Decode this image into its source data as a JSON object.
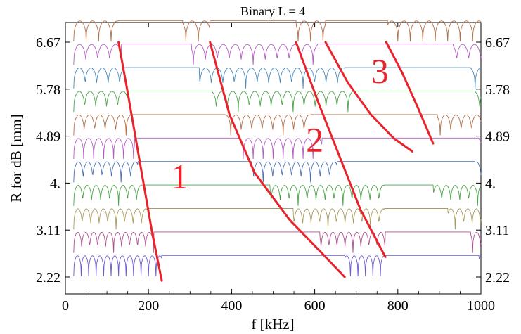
{
  "chart_data": {
    "type": "line",
    "title": "Binary L = 4",
    "xlabel": "f [kHz]",
    "ylabel": "R for dB [mm]",
    "xlim": [
      0,
      1000
    ],
    "ylim": [
      2.22,
      6.67
    ],
    "x_ticks": [
      "0",
      "200",
      "400",
      "600",
      "800",
      "1000"
    ],
    "x_tick_values": [
      0,
      200,
      400,
      600,
      800,
      1000
    ],
    "y_ticks": [
      "2.22",
      "3.11",
      "4.",
      "4.89",
      "5.78",
      "6.67"
    ],
    "y_tick_values": [
      2.22,
      3.11,
      4.0,
      4.89,
      5.78,
      6.67
    ],
    "grid": false,
    "row_colors": [
      "#6a5acd",
      "#b04f8d",
      "#a89b5c",
      "#4aa44a",
      "#4a6fb3",
      "#b25cc2",
      "#b0704a",
      "#4aa44a",
      "#4a8ab8",
      "#b25cc2",
      "#b0704a"
    ],
    "stopbands": [
      {
        "R": 2.22,
        "gaps": [
          [
            232,
            672
          ],
          [
            768,
            995
          ]
        ]
      },
      {
        "R": 2.665,
        "gaps": [
          [
            213,
            612
          ],
          [
            770,
            975
          ]
        ]
      },
      {
        "R": 3.11,
        "gaps": [
          [
            197,
            548
          ],
          [
            768,
            920
          ]
        ]
      },
      {
        "R": 3.555,
        "gaps": [
          [
            183,
            492
          ],
          [
            768,
            885
          ]
        ]
      },
      {
        "R": 4.0,
        "gaps": [
          [
            175,
            447
          ],
          [
            654,
            985
          ]
        ]
      },
      {
        "R": 4.445,
        "gaps": [
          [
            167,
            414
          ],
          [
            618,
            995
          ]
        ]
      },
      {
        "R": 4.89,
        "gaps": [
          [
            157,
            386
          ],
          [
            590,
            895
          ]
        ]
      },
      {
        "R": 5.335,
        "gaps": [
          [
            150,
            352
          ],
          [
            695,
            985
          ]
        ]
      },
      {
        "R": 5.78,
        "gaps": [
          [
            140,
            322
          ],
          [
            672,
            975
          ]
        ]
      },
      {
        "R": 6.225,
        "gaps": [
          [
            135,
            303
          ],
          [
            607,
            933
          ]
        ]
      },
      {
        "R": 6.67,
        "gaps": [
          [
            128,
            282
          ],
          [
            348,
            555
          ],
          [
            626,
            775
          ]
        ]
      }
    ],
    "bands": [
      {
        "name": "1",
        "x": [
          128,
          148,
          168,
          188,
          208,
          232
        ],
        "y": [
          6.67,
          5.8,
          4.9,
          4.0,
          3.1,
          2.15
        ]
      },
      {
        "name": "2",
        "x": [
          348,
          395,
          455,
          540,
          620,
          672
        ],
        "y": [
          6.67,
          5.3,
          4.2,
          3.3,
          2.65,
          2.22
        ]
      },
      {
        "name": "2",
        "x": [
          555,
          610,
          660,
          710,
          770
        ],
        "y": [
          6.67,
          5.5,
          4.5,
          3.5,
          2.6
        ]
      },
      {
        "name": "3",
        "x": [
          626,
          680,
          735,
          790,
          835
        ],
        "y": [
          6.67,
          5.9,
          5.3,
          4.85,
          4.6
        ]
      },
      {
        "name": "3",
        "x": [
          772,
          810,
          850,
          885
        ],
        "y": [
          6.67,
          6.1,
          5.4,
          4.75
        ]
      }
    ],
    "band_labels": [
      {
        "text": "1",
        "x": 275,
        "y": 3.9
      },
      {
        "text": "2",
        "x": 600,
        "y": 4.6
      },
      {
        "text": "3",
        "x": 757,
        "y": 5.9
      }
    ]
  }
}
